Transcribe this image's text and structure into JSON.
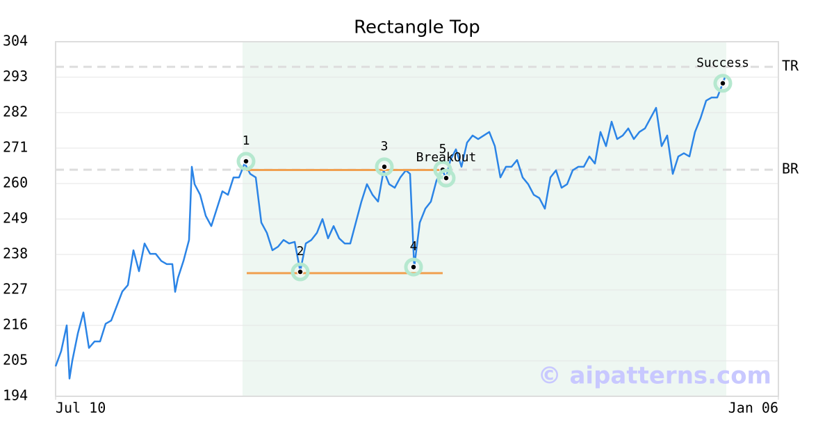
{
  "chart_data": {
    "type": "line",
    "title": "Rectangle Top",
    "color": "#2b84e6",
    "x": [
      0,
      2,
      4,
      5,
      6,
      8,
      10,
      12,
      14,
      16,
      18,
      20,
      22,
      24,
      26,
      28,
      30,
      32,
      34,
      36,
      38,
      40,
      42,
      43,
      44,
      46,
      48,
      49,
      50,
      52,
      54,
      56,
      58,
      60,
      62,
      64,
      66,
      68,
      70,
      72,
      74,
      76,
      78,
      80,
      82,
      84,
      86,
      88,
      90,
      92,
      94,
      96,
      98,
      100,
      102,
      104,
      106,
      108,
      110,
      112,
      114,
      116,
      118,
      120,
      122,
      124,
      126,
      127.5,
      129,
      131,
      133,
      135,
      137,
      139,
      140.5,
      142,
      144,
      146,
      148,
      150,
      152,
      154,
      156,
      158,
      160,
      162,
      164,
      166,
      168,
      170,
      172,
      174,
      176,
      178,
      180,
      182,
      184,
      186,
      188,
      190,
      192,
      194,
      196,
      198,
      200,
      202,
      204,
      206,
      208,
      210,
      212,
      214,
      216,
      218,
      220,
      222,
      224,
      226,
      228,
      230,
      232,
      234,
      236,
      238,
      240,
      241
    ],
    "values": [
      203.3,
      208,
      216,
      199.5,
      205,
      213.5,
      220,
      209,
      211,
      211,
      216.5,
      217.5,
      222,
      226.5,
      228.5,
      239.3,
      232.8,
      241.4,
      238.2,
      238.2,
      236,
      235,
      235,
      226.4,
      230.7,
      236,
      242.5,
      265.2,
      259.8,
      256.5,
      250,
      246.8,
      252.2,
      257.6,
      256.5,
      261.9,
      261.9,
      266.3,
      263,
      261.9,
      247.9,
      244.7,
      239.3,
      240.4,
      242.5,
      241.4,
      241.9,
      232.8,
      241.4,
      242.5,
      244.7,
      249,
      243,
      246.8,
      243,
      241.4,
      241.4,
      247.9,
      254.4,
      259.8,
      256.5,
      254.4,
      264.1,
      259.8,
      258.7,
      261.9,
      264.1,
      263,
      234.1,
      247.9,
      252.2,
      254.4,
      260.9,
      264.3,
      261.7,
      267.3,
      270.6,
      265.2,
      272.7,
      274.9,
      273.8,
      274.9,
      276,
      271.6,
      261.9,
      265.2,
      265.2,
      267.3,
      261.9,
      259.8,
      256.5,
      255.5,
      252.2,
      261.9,
      264.1,
      258.7,
      259.8,
      264.1,
      265.2,
      265.2,
      268.4,
      266.2,
      276,
      271.6,
      279.2,
      273.8,
      274.9,
      277.1,
      273.8,
      276,
      277.1,
      280.3,
      283.5,
      271.6,
      274.9,
      263,
      268.4,
      269.4,
      268.4,
      276,
      280.3,
      285.7,
      286.7,
      286.7,
      291.1,
      293.6
    ],
    "xlim": [
      0,
      260
    ],
    "ylim": [
      194,
      304
    ],
    "xticks": [
      {
        "value": 0,
        "label": "Jul 10"
      },
      {
        "value": 260,
        "label": "Jan 06"
      }
    ],
    "yticks": [
      194,
      205,
      216,
      227,
      238,
      249,
      260,
      271,
      282,
      293,
      304
    ],
    "grid": true,
    "shaded_region": {
      "x": [
        67.25,
        241.25
      ],
      "color": "#eef7f2"
    },
    "levels": [
      {
        "label": "TR",
        "value": 296.2
      },
      {
        "label": "BR",
        "value": 264.3
      }
    ],
    "rectangle_color": "#f0a050",
    "rectangle_lines": [
      {
        "x": [
          68.5,
          140
        ],
        "value": 264.2
      },
      {
        "x": [
          68.75,
          139.25
        ],
        "value": 232.2
      }
    ],
    "marker_color": "#b5e8cf",
    "markers": [
      {
        "label": "1",
        "x": 68.5,
        "value": 266.9
      },
      {
        "label": "2",
        "x": 88,
        "value": 232.6
      },
      {
        "label": "3",
        "x": 118.25,
        "value": 265.2
      },
      {
        "label": "4",
        "x": 128.75,
        "value": 234.1
      },
      {
        "label": "5",
        "x": 139.25,
        "value": 264.3
      },
      {
        "label": "BreakOut",
        "x": 140.5,
        "value": 261.7
      },
      {
        "label": "Success",
        "x": 240,
        "value": 291.1
      }
    ],
    "watermark": "© aipatterns.com"
  }
}
